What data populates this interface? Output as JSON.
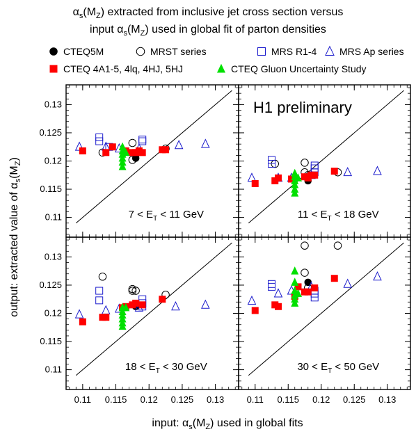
{
  "figure": {
    "title_line1_prefix": "α",
    "title_line1_sub1": "s",
    "title_line1_mid": "(M",
    "title_line1_sub2": "Z",
    "title_line1_suffix": ") extracted from inclusive jet cross section versus",
    "title_line2_prefix": "input α",
    "title_line2_sub1": "s",
    "title_line2_mid": "(M",
    "title_line2_sub2": "Z",
    "title_line2_suffix": ") used in global fit of parton densities",
    "xlabel_prefix": "input: α",
    "xlabel_sub1": "s",
    "xlabel_mid": "(M",
    "xlabel_sub2": "Z",
    "xlabel_suffix": ") used in global fits",
    "ylabel_prefix": "output: extracted value of α",
    "ylabel_sub1": "s",
    "ylabel_mid": "(M",
    "ylabel_sub2": "Z",
    "ylabel_suffix": ")",
    "annotation": "H1 preliminary"
  },
  "chart_data": {
    "type": "scatter",
    "xlim": [
      0.1075,
      0.1335
    ],
    "ylim": [
      0.1065,
      0.1335
    ],
    "xticks": [
      "0.11",
      "0.115",
      "0.12",
      "0.125",
      "0.13"
    ],
    "yticks": [
      "0.11",
      "0.115",
      "0.12",
      "0.125",
      "0.13"
    ],
    "xtick_values": [
      0.11,
      0.115,
      0.12,
      0.125,
      0.13
    ],
    "ytick_values": [
      0.11,
      0.115,
      0.12,
      0.125,
      0.13
    ],
    "diagonal_reference": true,
    "legend": [
      {
        "name": "CTEQ5M",
        "marker": "filled-circle",
        "color": "#000000"
      },
      {
        "name": "MRST series",
        "marker": "open-circle",
        "color": "#000000"
      },
      {
        "name": "MRS R1-4",
        "marker": "open-square",
        "color": "#1a1acc"
      },
      {
        "name": "MRS Ap series",
        "marker": "open-triangle",
        "color": "#1a1acc"
      },
      {
        "name": "CTEQ 4A1-5, 4lq, 4HJ,  5HJ",
        "marker": "filled-square",
        "color": "#ff0000"
      },
      {
        "name": "CTEQ Gluon Uncertainty Study",
        "marker": "filled-triangle",
        "color": "#00e000"
      }
    ],
    "panels": [
      {
        "label_prefix": "7 < E",
        "label_sub": "T",
        "label_suffix": " < 11 GeV",
        "series": [
          {
            "name": "CTEQ5M",
            "points": [
              [
                0.118,
                0.1205
              ]
            ]
          },
          {
            "name": "MRST series",
            "points": [
              [
                0.113,
                0.1215
              ],
              [
                0.1175,
                0.1232
              ],
              [
                0.1175,
                0.1202
              ],
              [
                0.1225,
                0.1222
              ],
              [
                0.118,
                0.1212
              ]
            ]
          },
          {
            "name": "MRS R1-4",
            "points": [
              [
                0.1125,
                0.1242
              ],
              [
                0.1125,
                0.1235
              ],
              [
                0.119,
                0.1238
              ],
              [
                0.119,
                0.1235
              ],
              [
                0.114,
                0.1225
              ]
            ]
          },
          {
            "name": "MRS Ap series",
            "points": [
              [
                0.1095,
                0.1225
              ],
              [
                0.1135,
                0.1225
              ],
              [
                0.1155,
                0.1222
              ],
              [
                0.1185,
                0.1222
              ],
              [
                0.1245,
                0.1228
              ],
              [
                0.1285,
                0.123
              ]
            ]
          },
          {
            "name": "CTEQ 4A1-5, 4lq, 4HJ,  5HJ",
            "points": [
              [
                0.11,
                0.1218
              ],
              [
                0.1135,
                0.1215
              ],
              [
                0.1145,
                0.1225
              ],
              [
                0.1165,
                0.1218
              ],
              [
                0.1175,
                0.1215
              ],
              [
                0.118,
                0.1215
              ],
              [
                0.1185,
                0.1218
              ],
              [
                0.119,
                0.1215
              ],
              [
                0.122,
                0.122
              ],
              [
                0.1225,
                0.122
              ]
            ]
          },
          {
            "name": "CTEQ Gluon Uncertainty Study",
            "points": [
              [
                0.116,
                0.1225
              ],
              [
                0.116,
                0.1218
              ],
              [
                0.116,
                0.1212
              ],
              [
                0.116,
                0.1205
              ],
              [
                0.116,
                0.1198
              ],
              [
                0.116,
                0.119
              ],
              [
                0.1165,
                0.1215
              ]
            ]
          }
        ]
      },
      {
        "label_prefix": "11 < E",
        "label_sub": "T",
        "label_suffix": " < 18 GeV",
        "series": [
          {
            "name": "CTEQ5M",
            "points": [
              [
                0.118,
                0.1165
              ]
            ]
          },
          {
            "name": "MRST series",
            "points": [
              [
                0.113,
                0.1195
              ],
              [
                0.1175,
                0.1197
              ],
              [
                0.1175,
                0.118
              ],
              [
                0.1225,
                0.118
              ],
              [
                0.118,
                0.1175
              ]
            ]
          },
          {
            "name": "MRS R1-4",
            "points": [
              [
                0.1125,
                0.1202
              ],
              [
                0.1125,
                0.1195
              ],
              [
                0.119,
                0.1192
              ],
              [
                0.119,
                0.1187
              ],
              [
                0.119,
                0.118
              ]
            ]
          },
          {
            "name": "MRS Ap series",
            "points": [
              [
                0.1095,
                0.117
              ],
              [
                0.1135,
                0.117
              ],
              [
                0.1155,
                0.117
              ],
              [
                0.1185,
                0.1175
              ],
              [
                0.124,
                0.118
              ],
              [
                0.1285,
                0.1182
              ]
            ]
          },
          {
            "name": "CTEQ 4A1-5, 4lq, 4HJ,  5HJ",
            "points": [
              [
                0.11,
                0.116
              ],
              [
                0.113,
                0.1165
              ],
              [
                0.1135,
                0.117
              ],
              [
                0.1155,
                0.1168
              ],
              [
                0.1175,
                0.1172
              ],
              [
                0.118,
                0.117
              ],
              [
                0.1185,
                0.1175
              ],
              [
                0.119,
                0.1175
              ],
              [
                0.122,
                0.1182
              ]
            ]
          },
          {
            "name": "CTEQ Gluon Uncertainty Study",
            "points": [
              [
                0.116,
                0.1178
              ],
              [
                0.116,
                0.1172
              ],
              [
                0.116,
                0.1165
              ],
              [
                0.116,
                0.1158
              ],
              [
                0.116,
                0.115
              ],
              [
                0.116,
                0.1143
              ],
              [
                0.1165,
                0.117
              ]
            ]
          }
        ]
      },
      {
        "label_prefix": "18 < E",
        "label_sub": "T",
        "label_suffix": " < 30 GeV",
        "series": [
          {
            "name": "CTEQ5M",
            "points": [
              [
                0.118,
                0.1212
              ]
            ]
          },
          {
            "name": "MRST series",
            "points": [
              [
                0.113,
                0.1265
              ],
              [
                0.1175,
                0.1243
              ],
              [
                0.1175,
                0.124
              ],
              [
                0.118,
                0.124
              ],
              [
                0.1225,
                0.1233
              ]
            ]
          },
          {
            "name": "MRS R1-4",
            "points": [
              [
                0.1125,
                0.124
              ],
              [
                0.1125,
                0.1223
              ],
              [
                0.119,
                0.1225
              ],
              [
                0.119,
                0.1218
              ],
              [
                0.119,
                0.1212
              ]
            ]
          },
          {
            "name": "MRS Ap series",
            "points": [
              [
                0.1095,
                0.1198
              ],
              [
                0.1135,
                0.1205
              ],
              [
                0.1155,
                0.1208
              ],
              [
                0.1185,
                0.121
              ],
              [
                0.124,
                0.1212
              ],
              [
                0.1285,
                0.1215
              ]
            ]
          },
          {
            "name": "CTEQ 4A1-5, 4lq, 4HJ,  5HJ",
            "points": [
              [
                0.11,
                0.1185
              ],
              [
                0.113,
                0.1193
              ],
              [
                0.1135,
                0.1193
              ],
              [
                0.116,
                0.121
              ],
              [
                0.1165,
                0.1212
              ],
              [
                0.1175,
                0.1215
              ],
              [
                0.118,
                0.1218
              ],
              [
                0.119,
                0.1215
              ],
              [
                0.122,
                0.1225
              ]
            ]
          },
          {
            "name": "CTEQ Gluon Uncertainty Study",
            "points": [
              [
                0.116,
                0.121
              ],
              [
                0.116,
                0.1203
              ],
              [
                0.116,
                0.1197
              ],
              [
                0.116,
                0.119
              ],
              [
                0.116,
                0.1183
              ],
              [
                0.116,
                0.1177
              ],
              [
                0.1165,
                0.121
              ]
            ]
          }
        ]
      },
      {
        "label_prefix": "30 < E",
        "label_sub": "T",
        "label_suffix": " < 50 GeV",
        "series": [
          {
            "name": "CTEQ5M",
            "points": [
              [
                0.118,
                0.1255
              ]
            ]
          },
          {
            "name": "MRST series",
            "points": [
              [
                0.1175,
                0.132
              ],
              [
                0.1225,
                0.132
              ],
              [
                0.1175,
                0.1272
              ],
              [
                0.118,
                0.1245
              ]
            ]
          },
          {
            "name": "MRS R1-4",
            "points": [
              [
                0.1125,
                0.1252
              ],
              [
                0.1125,
                0.1247
              ],
              [
                0.119,
                0.124
              ],
              [
                0.119,
                0.1235
              ],
              [
                0.119,
                0.1228
              ]
            ]
          },
          {
            "name": "MRS Ap series",
            "points": [
              [
                0.1095,
                0.1222
              ],
              [
                0.1135,
                0.1235
              ],
              [
                0.1155,
                0.124
              ],
              [
                0.1185,
                0.1247
              ],
              [
                0.124,
                0.1252
              ],
              [
                0.1285,
                0.1265
              ]
            ]
          },
          {
            "name": "CTEQ 4A1-5, 4lq, 4HJ,  5HJ",
            "points": [
              [
                0.11,
                0.1205
              ],
              [
                0.113,
                0.1215
              ],
              [
                0.1135,
                0.1212
              ],
              [
                0.116,
                0.123
              ],
              [
                0.1165,
                0.1247
              ],
              [
                0.1175,
                0.1238
              ],
              [
                0.118,
                0.1238
              ],
              [
                0.119,
                0.1245
              ],
              [
                0.122,
                0.1262
              ]
            ]
          },
          {
            "name": "CTEQ Gluon Uncertainty Study",
            "points": [
              [
                0.116,
                0.1275
              ],
              [
                0.116,
                0.1255
              ],
              [
                0.116,
                0.124
              ],
              [
                0.116,
                0.1232
              ],
              [
                0.116,
                0.1225
              ],
              [
                0.116,
                0.1218
              ],
              [
                0.1165,
                0.1235
              ]
            ]
          }
        ]
      }
    ]
  }
}
